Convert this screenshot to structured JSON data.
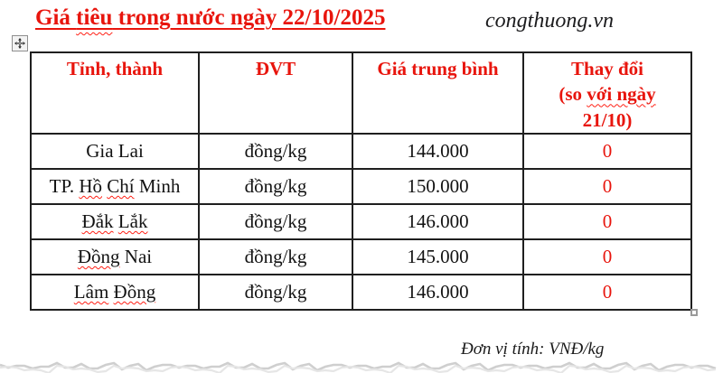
{
  "title": {
    "segments": [
      {
        "t": "Giá "
      },
      {
        "t": "tiêu",
        "w": true
      },
      {
        "t": " trong nước ngày 22/10/2025"
      }
    ]
  },
  "masthead": {
    "site": "congthuong.vn"
  },
  "table": {
    "header": {
      "province": "Tỉnh, thành",
      "unit": "ĐVT",
      "avg_price": "Giá trung bình",
      "change_lines": [
        [
          {
            "t": "Thay đổi"
          }
        ],
        [
          {
            "t": "(so "
          },
          {
            "t": "với ngày",
            "w": true
          }
        ],
        [
          {
            "t": "21/10)"
          }
        ]
      ]
    },
    "rows": [
      {
        "province": [
          {
            "t": "Gia Lai"
          }
        ],
        "unit": "đồng/kg",
        "avg_price": "144.000",
        "change": "0"
      },
      {
        "province": [
          {
            "t": "TP. "
          },
          {
            "t": "Hồ",
            "w": true
          },
          {
            "t": " "
          },
          {
            "t": "Chí",
            "w": true
          },
          {
            "t": " Minh"
          }
        ],
        "unit": "đồng/kg",
        "avg_price": "150.000",
        "change": "0"
      },
      {
        "province": [
          {
            "t": "Đắk",
            "w": true
          },
          {
            "t": " "
          },
          {
            "t": "Lắk",
            "w": true
          }
        ],
        "unit": "đồng/kg",
        "avg_price": "146.000",
        "change": "0"
      },
      {
        "province": [
          {
            "t": "Đồng",
            "w": true
          },
          {
            "t": " Nai"
          }
        ],
        "unit": "đồng/kg",
        "avg_price": "145.000",
        "change": "0"
      },
      {
        "province": [
          {
            "t": "Lâm",
            "w": true
          },
          {
            "t": " "
          },
          {
            "t": "Đồng",
            "w": true
          }
        ],
        "unit": "đồng/kg",
        "avg_price": "146.000",
        "change": "0"
      }
    ]
  },
  "footer": {
    "unit_note": "Đơn vị tính: VNĐ/kg"
  },
  "icons": {
    "move_handle": "move-cross-icon",
    "resize_handle": "table-resize-square"
  },
  "colors": {
    "accent_red": "#e8150d",
    "squiggle_red": "#ff2015",
    "border_black": "#1f1f1f",
    "torn_edge_gray": "#c9c9c9"
  }
}
